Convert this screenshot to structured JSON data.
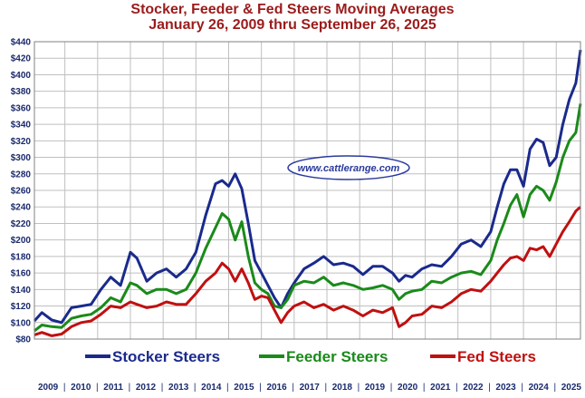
{
  "colors": {
    "stocker": "#1a2a8c",
    "feeder": "#1a8a1a",
    "fed": "#c01010",
    "title": "#9b1b1b",
    "grid": "#bfbfbf",
    "axis_text": "#1a2a6c",
    "plot_bg": "#ffffff"
  },
  "chart_data": {
    "type": "line",
    "title": "Stocker, Feeder & Fed Steers Moving Averages",
    "subtitle": "January 26, 2009 thru September 26, 2025",
    "xlabel": "",
    "ylabel": "",
    "ylim": [
      80,
      440
    ],
    "xlim": [
      2009.07,
      2025.74
    ],
    "y_ticks": [
      "$80",
      "$100",
      "$120",
      "$140",
      "$160",
      "$180",
      "$200",
      "$220",
      "$240",
      "$260",
      "$280",
      "$300",
      "$320",
      "$340",
      "$360",
      "$380",
      "$400",
      "$420",
      "$440"
    ],
    "y_tick_values": [
      80,
      100,
      120,
      140,
      160,
      180,
      200,
      220,
      240,
      260,
      280,
      300,
      320,
      340,
      360,
      380,
      400,
      420,
      440
    ],
    "x_tick_labels": [
      "2009",
      "2010",
      "2011",
      "2012",
      "2013",
      "2014",
      "2015",
      "2016",
      "2017",
      "2018",
      "2019",
      "2020",
      "2021",
      "2022",
      "2023",
      "2024",
      "2025"
    ],
    "grid": true,
    "legend_position": "bottom",
    "watermark": "www.cattlerange.com",
    "series": [
      {
        "name": "Stocker Steers",
        "color_key": "stocker",
        "x": [
          2009.07,
          2009.3,
          2009.6,
          2009.9,
          2010.2,
          2010.5,
          2010.8,
          2011.1,
          2011.4,
          2011.7,
          2012.0,
          2012.2,
          2012.5,
          2012.8,
          2013.1,
          2013.4,
          2013.7,
          2014.0,
          2014.3,
          2014.6,
          2014.8,
          2015.0,
          2015.2,
          2015.4,
          2015.6,
          2015.8,
          2016.0,
          2016.2,
          2016.4,
          2016.6,
          2016.8,
          2017.0,
          2017.3,
          2017.6,
          2017.9,
          2018.2,
          2018.5,
          2018.8,
          2019.1,
          2019.4,
          2019.7,
          2020.0,
          2020.2,
          2020.4,
          2020.6,
          2020.9,
          2021.2,
          2021.5,
          2021.8,
          2022.1,
          2022.4,
          2022.7,
          2023.0,
          2023.2,
          2023.4,
          2023.6,
          2023.8,
          2024.0,
          2024.2,
          2024.4,
          2024.6,
          2024.8,
          2025.0,
          2025.2,
          2025.4,
          2025.6,
          2025.74
        ],
        "y": [
          102,
          112,
          103,
          100,
          118,
          120,
          122,
          140,
          155,
          145,
          185,
          178,
          150,
          160,
          165,
          155,
          165,
          185,
          230,
          268,
          272,
          265,
          280,
          262,
          220,
          175,
          160,
          145,
          130,
          118,
          135,
          148,
          165,
          172,
          180,
          170,
          172,
          168,
          158,
          168,
          168,
          160,
          150,
          157,
          155,
          165,
          170,
          168,
          180,
          195,
          200,
          192,
          210,
          240,
          268,
          285,
          285,
          265,
          310,
          322,
          318,
          290,
          300,
          340,
          370,
          390,
          430
        ]
      },
      {
        "name": "Feeder Steers",
        "color_key": "feeder",
        "x": [
          2009.07,
          2009.3,
          2009.6,
          2009.9,
          2010.2,
          2010.5,
          2010.8,
          2011.1,
          2011.4,
          2011.7,
          2012.0,
          2012.2,
          2012.5,
          2012.8,
          2013.1,
          2013.4,
          2013.7,
          2014.0,
          2014.3,
          2014.6,
          2014.8,
          2015.0,
          2015.2,
          2015.4,
          2015.6,
          2015.8,
          2016.0,
          2016.2,
          2016.4,
          2016.6,
          2016.8,
          2017.0,
          2017.3,
          2017.6,
          2017.9,
          2018.2,
          2018.5,
          2018.8,
          2019.1,
          2019.4,
          2019.7,
          2020.0,
          2020.2,
          2020.4,
          2020.6,
          2020.9,
          2021.2,
          2021.5,
          2021.8,
          2022.1,
          2022.4,
          2022.7,
          2023.0,
          2023.2,
          2023.4,
          2023.6,
          2023.8,
          2024.0,
          2024.2,
          2024.4,
          2024.6,
          2024.8,
          2025.0,
          2025.2,
          2025.4,
          2025.6,
          2025.74
        ],
        "y": [
          90,
          97,
          95,
          94,
          105,
          108,
          110,
          118,
          130,
          125,
          148,
          145,
          135,
          140,
          140,
          135,
          140,
          160,
          190,
          215,
          232,
          225,
          200,
          222,
          180,
          148,
          140,
          135,
          120,
          118,
          128,
          145,
          150,
          148,
          155,
          145,
          148,
          145,
          140,
          142,
          145,
          140,
          128,
          135,
          138,
          140,
          150,
          148,
          155,
          160,
          162,
          158,
          175,
          200,
          220,
          242,
          255,
          228,
          255,
          265,
          260,
          248,
          270,
          300,
          320,
          330,
          365
        ]
      },
      {
        "name": "Fed Steers",
        "color_key": "fed",
        "x": [
          2009.07,
          2009.3,
          2009.6,
          2009.9,
          2010.2,
          2010.5,
          2010.8,
          2011.1,
          2011.4,
          2011.7,
          2012.0,
          2012.2,
          2012.5,
          2012.8,
          2013.1,
          2013.4,
          2013.7,
          2014.0,
          2014.3,
          2014.6,
          2014.8,
          2015.0,
          2015.2,
          2015.4,
          2015.6,
          2015.8,
          2016.0,
          2016.2,
          2016.4,
          2016.6,
          2016.8,
          2017.0,
          2017.3,
          2017.6,
          2017.9,
          2018.2,
          2018.5,
          2018.8,
          2019.1,
          2019.4,
          2019.7,
          2020.0,
          2020.2,
          2020.4,
          2020.6,
          2020.9,
          2021.2,
          2021.5,
          2021.8,
          2022.1,
          2022.4,
          2022.7,
          2023.0,
          2023.2,
          2023.4,
          2023.6,
          2023.8,
          2024.0,
          2024.2,
          2024.4,
          2024.6,
          2024.8,
          2025.0,
          2025.2,
          2025.4,
          2025.6,
          2025.74
        ],
        "y": [
          85,
          88,
          84,
          86,
          95,
          100,
          102,
          110,
          120,
          118,
          125,
          122,
          118,
          120,
          125,
          122,
          122,
          135,
          150,
          160,
          172,
          165,
          150,
          165,
          148,
          128,
          132,
          130,
          115,
          100,
          112,
          120,
          125,
          118,
          122,
          115,
          120,
          115,
          108,
          115,
          112,
          118,
          95,
          100,
          108,
          110,
          120,
          118,
          125,
          135,
          140,
          138,
          150,
          160,
          170,
          178,
          180,
          175,
          190,
          188,
          192,
          180,
          195,
          210,
          222,
          235,
          240
        ]
      }
    ]
  }
}
